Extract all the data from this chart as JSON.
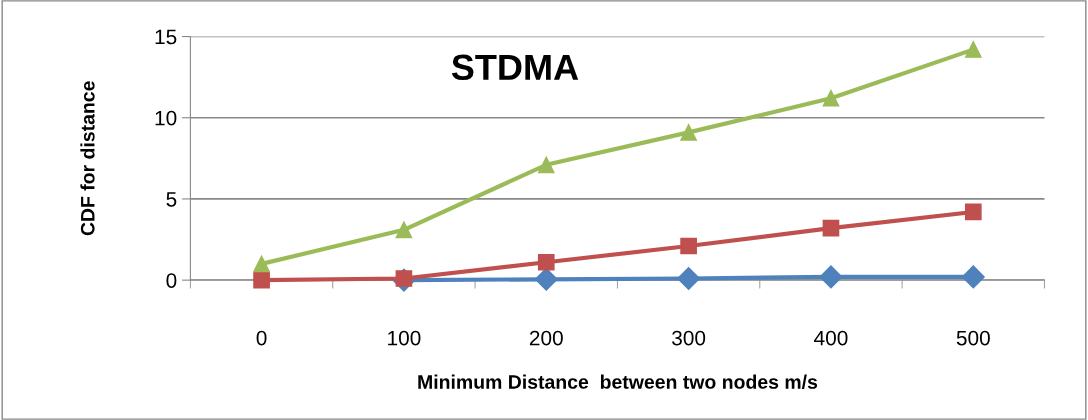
{
  "chart_data": {
    "type": "line",
    "title": "STDMA",
    "xlabel": "Minimum Distance  between two nodes m/s",
    "ylabel": "CDF for distance",
    "categories": [
      "0",
      "100",
      "200",
      "300",
      "400",
      "500"
    ],
    "series": [
      {
        "color": "#4f81bd",
        "values": [
          null,
          0,
          0.05,
          0.1,
          0.2,
          0.2
        ],
        "marker": "diamond"
      },
      {
        "color": "#c0504d",
        "values": [
          0,
          0.1,
          1.1,
          2.1,
          3.2,
          4.2
        ],
        "marker": "square"
      },
      {
        "color": "#9bbb59",
        "values": [
          1,
          3.1,
          7.1,
          9.1,
          11.2,
          14.2
        ],
        "marker": "triangle"
      }
    ],
    "ylim": [
      0,
      15
    ],
    "yticks": [
      0,
      5,
      10,
      15
    ],
    "grid": "y",
    "legend": false
  }
}
